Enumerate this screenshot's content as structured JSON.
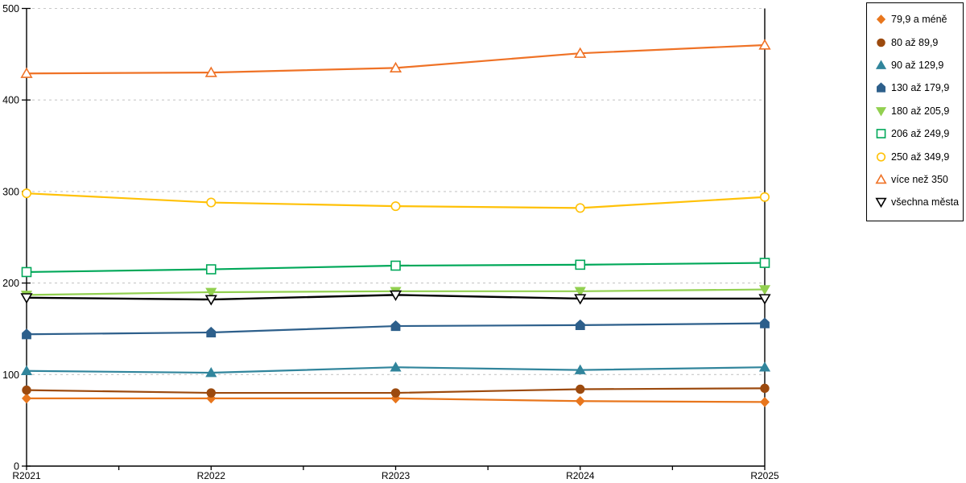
{
  "chart_data": {
    "type": "line",
    "title": "",
    "xlabel": "",
    "ylabel": "",
    "x_categories": [
      "R2021",
      "R2022",
      "R2023",
      "R2024",
      "R2025"
    ],
    "ylim": [
      0,
      500
    ],
    "yticks": [
      0,
      100,
      200,
      300,
      400,
      500
    ],
    "grid": "horizontal-dashed",
    "legend_position": "right",
    "series": [
      {
        "name": "79,9 a méně",
        "marker": "diamond",
        "fill": "filled",
        "color": "#E8761D",
        "line_width": 2.2,
        "values": [
          74,
          74,
          74,
          71,
          70
        ]
      },
      {
        "name": "80 až 89,9",
        "marker": "circle",
        "fill": "filled",
        "color": "#9C4A0E",
        "line_width": 2.2,
        "values": [
          83,
          80,
          80,
          84,
          85
        ]
      },
      {
        "name": "90 až 129,9",
        "marker": "triangle-up",
        "fill": "filled",
        "color": "#31859C",
        "line_width": 2.2,
        "values": [
          104,
          102,
          108,
          105,
          108
        ]
      },
      {
        "name": "130 až 179,9",
        "marker": "pentagon",
        "fill": "filled",
        "color": "#2D5F8B",
        "line_width": 2.2,
        "values": [
          144,
          146,
          153,
          154,
          156
        ]
      },
      {
        "name": "180 až 205,9",
        "marker": "triangle-down",
        "fill": "filled",
        "color": "#92D050",
        "line_width": 2.2,
        "values": [
          187,
          190,
          191,
          191,
          193
        ]
      },
      {
        "name": "206 až 249,9",
        "marker": "square",
        "fill": "open",
        "color": "#00A859",
        "line_width": 2.2,
        "values": [
          212,
          215,
          219,
          220,
          222
        ]
      },
      {
        "name": "250 až 349,9",
        "marker": "circle",
        "fill": "open",
        "color": "#FFC107",
        "line_width": 2.2,
        "values": [
          298,
          288,
          284,
          282,
          294
        ]
      },
      {
        "name": "více než 350",
        "marker": "triangle-up",
        "fill": "open",
        "color": "#EF7226",
        "line_width": 2.2,
        "values": [
          429,
          430,
          435,
          451,
          460
        ]
      },
      {
        "name": "všechna města",
        "marker": "triangle-down",
        "fill": "open",
        "color": "#000000",
        "line_width": 2.4,
        "values": [
          184,
          182,
          187,
          183,
          183
        ]
      }
    ]
  },
  "colors": {
    "axis": "#000000",
    "gridline": "#c8c8c8",
    "background": "#ffffff",
    "legend_border": "#000000"
  }
}
